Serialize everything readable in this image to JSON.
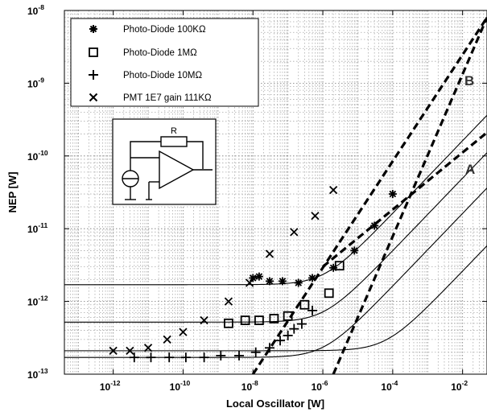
{
  "chart_data": {
    "type": "line",
    "xlabel": "Local Oscillator [W]",
    "ylabel": "NEP [W]",
    "xscale": "log",
    "yscale": "log",
    "xlim": [
      4e-14,
      0.05
    ],
    "ylim": [
      1e-13,
      1e-08
    ],
    "x_ticks": [
      {
        "value": 1e-12,
        "base": "10",
        "exp": "-12"
      },
      {
        "value": 1e-10,
        "base": "10",
        "exp": "-10"
      },
      {
        "value": 1e-08,
        "base": "10",
        "exp": "-8"
      },
      {
        "value": 1e-06,
        "base": "10",
        "exp": "-6"
      },
      {
        "value": 0.0001,
        "base": "10",
        "exp": "-4"
      },
      {
        "value": 0.01,
        "base": "10",
        "exp": "-2"
      }
    ],
    "y_ticks": [
      {
        "value": 1e-13,
        "base": "10",
        "exp": "-13"
      },
      {
        "value": 1e-12,
        "base": "10",
        "exp": "-12"
      },
      {
        "value": 1e-11,
        "base": "10",
        "exp": "-11"
      },
      {
        "value": 1e-10,
        "base": "10",
        "exp": "-10"
      },
      {
        "value": 1e-09,
        "base": "10",
        "exp": "-9"
      },
      {
        "value": 1e-08,
        "base": "10",
        "exp": "-8"
      }
    ],
    "grid": true,
    "legend_position": "top-left",
    "series": [
      {
        "name": "Photo-Diode 100KΩ",
        "marker": "asterisk",
        "points": [
          [
            1e-08,
            2.1e-12
          ],
          [
            1.5e-08,
            2.2e-12
          ],
          [
            3e-08,
            1.9e-12
          ],
          [
            7e-08,
            1.9e-12
          ],
          [
            2e-07,
            1.8e-12
          ],
          [
            5e-07,
            2.1e-12
          ],
          [
            2e-06,
            2.9e-12
          ],
          [
            8e-06,
            5e-12
          ],
          [
            3e-05,
            1.1e-11
          ],
          [
            0.0001,
            3e-11
          ]
        ]
      },
      {
        "name": "Photo-Diode 1MΩ",
        "marker": "square",
        "points": [
          [
            2e-09,
            5e-13
          ],
          [
            6e-09,
            5.5e-13
          ],
          [
            1.5e-08,
            5.5e-13
          ],
          [
            4e-08,
            5.8e-13
          ],
          [
            1e-07,
            6.3e-13
          ],
          [
            3e-07,
            9e-13
          ],
          [
            1.5e-06,
            1.3e-12
          ],
          [
            3e-06,
            3.1e-12
          ]
        ]
      },
      {
        "name": "Photo-Diode 10MΩ",
        "marker": "plus",
        "points": [
          [
            4e-12,
            1.7e-13
          ],
          [
            1.2e-11,
            1.7e-13
          ],
          [
            4e-11,
            1.7e-13
          ],
          [
            1.2e-10,
            1.7e-13
          ],
          [
            4e-10,
            1.7e-13
          ],
          [
            1.2e-09,
            1.8e-13
          ],
          [
            4e-09,
            1.8e-13
          ],
          [
            1.2e-08,
            2e-13
          ],
          [
            3e-08,
            2.3e-13
          ],
          [
            6e-08,
            2.9e-13
          ],
          [
            1e-07,
            3.4e-13
          ],
          [
            1.5e-07,
            4.2e-13
          ],
          [
            2.5e-07,
            4.9e-13
          ],
          [
            5e-07,
            7.5e-13
          ]
        ]
      },
      {
        "name": "PMT 1E7 gain 111KΩ",
        "marker": "x",
        "points": [
          [
            1e-12,
            2.1e-13
          ],
          [
            3e-12,
            2.1e-13
          ],
          [
            1e-11,
            2.3e-13
          ],
          [
            3.5e-11,
            3e-13
          ],
          [
            1e-10,
            3.8e-13
          ],
          [
            4e-10,
            5.5e-13
          ],
          [
            2e-09,
            1e-12
          ],
          [
            8e-09,
            1.8e-12
          ],
          [
            3e-08,
            4.5e-12
          ],
          [
            1.5e-07,
            9e-12
          ],
          [
            6e-07,
            1.5e-11
          ],
          [
            2e-06,
            3.4e-11
          ]
        ]
      }
    ],
    "model_curves": [
      {
        "a": 1.7e-12,
        "k": 1.1e-06
      },
      {
        "a": 5.2e-13,
        "k": 1.1e-06
      },
      {
        "a": 1.7e-13,
        "k": 1.1e-06
      },
      {
        "a": 2.1e-13,
        "k": 6.5e-05
      }
    ],
    "asymptotes": [
      {
        "label": "A",
        "points": [
          [
            1e-06,
            3e-12
          ],
          [
            0.05,
            2.1e-10
          ]
        ]
      },
      {
        "label": "B",
        "points": [
          [
            1e-08,
            1e-13
          ],
          [
            0.05,
            8e-09
          ]
        ]
      },
      {
        "label": "",
        "points": [
          [
            2e-06,
            1e-13
          ],
          [
            0.05,
            8e-09
          ]
        ]
      }
    ],
    "inset": {
      "label": "R"
    }
  }
}
